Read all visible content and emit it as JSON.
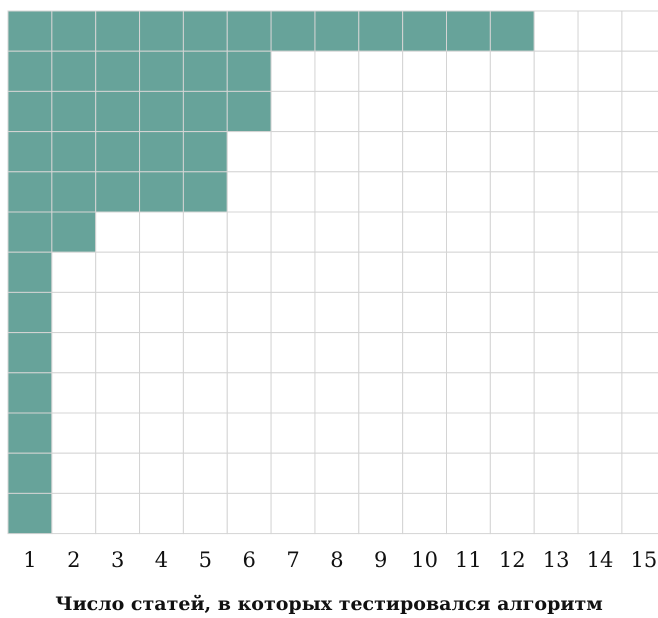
{
  "chart_data": {
    "type": "heatmap",
    "title": "",
    "xlabel": "Число статей, в которых тестировался алгоритм",
    "ylabel": "",
    "x_ticks": [
      "1",
      "2",
      "3",
      "4",
      "5",
      "6",
      "7",
      "8",
      "9",
      "10",
      "11",
      "12",
      "13",
      "14",
      "15"
    ],
    "rows": 13,
    "filled_columns_per_row": [
      12,
      6,
      6,
      5,
      5,
      2,
      1,
      1,
      1,
      1,
      1,
      1,
      1
    ],
    "grid": true,
    "colors": {
      "filled": "#67a39a",
      "grid": "#d4d4d4",
      "background": "#ffffff",
      "text": "#111111"
    }
  }
}
